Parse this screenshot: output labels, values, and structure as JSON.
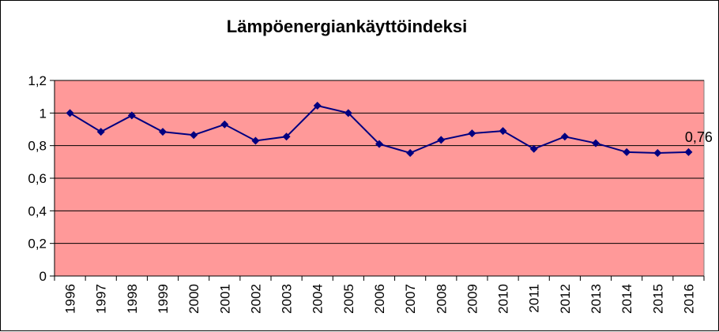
{
  "chart_data": {
    "type": "line",
    "title": "Lämpöenergiankäyttöindeksi",
    "categories": [
      "1996",
      "1997",
      "1998",
      "1999",
      "2000",
      "2001",
      "2002",
      "2003",
      "2004",
      "2005",
      "2006",
      "2007",
      "2008",
      "2009",
      "2010",
      "2011",
      "2012",
      "2013",
      "2014",
      "2015",
      "2016"
    ],
    "series": [
      {
        "values": [
          1.0,
          0.885,
          0.985,
          0.885,
          0.865,
          0.93,
          0.83,
          0.855,
          1.045,
          1.0,
          0.81,
          0.755,
          0.835,
          0.875,
          0.89,
          0.78,
          0.855,
          0.815,
          0.76,
          0.755,
          0.76
        ],
        "color": "#000080"
      }
    ],
    "ylim": [
      0,
      1.2
    ],
    "yticks": [
      "0",
      "0,2",
      "0,4",
      "0,6",
      "0,8",
      "1",
      "1,2"
    ],
    "annotation": "0,76",
    "grid": true,
    "plot_background": "#FF9999",
    "gridline_color": "#000000"
  }
}
